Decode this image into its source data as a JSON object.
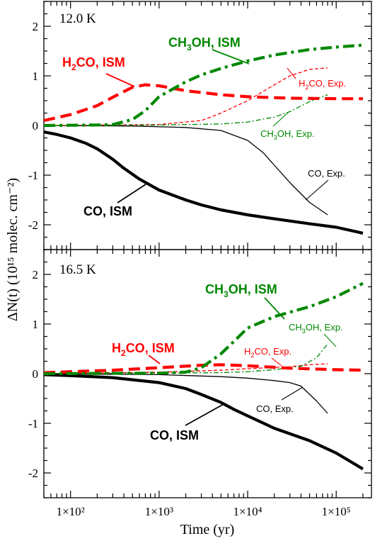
{
  "figure": {
    "xlabel": "Time (yr)",
    "ylabel": "ΔN(t) (10¹⁵ molec. cm⁻²)",
    "x_tick_labels": [
      "1×10²",
      "1×10³",
      "1×10⁴",
      "1×10⁵"
    ]
  },
  "colors": {
    "co": "#000000",
    "h2co": "#ff0000",
    "ch3oh": "#008800"
  },
  "chart_data": [
    {
      "type": "line",
      "panel_label": "12.0 K",
      "x_scale": "log",
      "xlim": [
        50,
        250000
      ],
      "ylim": [
        -2.5,
        2.5
      ],
      "y_ticks": [
        -2,
        -1,
        0,
        1,
        2
      ],
      "y_tick_labels": [
        "-2",
        "-1",
        "0",
        "1",
        "2"
      ],
      "series": [
        {
          "name": "CO, ISM",
          "species": "co",
          "style": "ism",
          "x": [
            50,
            70,
            100,
            150,
            200,
            300,
            400,
            600,
            1000,
            2000,
            3000,
            5000,
            10000,
            20000,
            50000,
            100000,
            200000
          ],
          "y": [
            -0.13,
            -0.18,
            -0.25,
            -0.36,
            -0.47,
            -0.68,
            -0.86,
            -1.08,
            -1.3,
            -1.5,
            -1.6,
            -1.7,
            -1.8,
            -1.88,
            -1.98,
            -2.05,
            -2.17
          ]
        },
        {
          "name": "H₂CO, ISM",
          "species": "h2co",
          "style": "ism",
          "x": [
            50,
            100,
            200,
            300,
            500,
            700,
            1000,
            2000,
            5000,
            10000,
            30000,
            100000,
            200000
          ],
          "y": [
            0.1,
            0.22,
            0.4,
            0.57,
            0.77,
            0.82,
            0.8,
            0.7,
            0.62,
            0.58,
            0.55,
            0.54,
            0.54
          ]
        },
        {
          "name": "CH₃OH, ISM",
          "species": "ch3oh",
          "style": "ism",
          "x": [
            50,
            200,
            300,
            500,
            700,
            1000,
            2000,
            3000,
            5000,
            10000,
            20000,
            50000,
            100000,
            200000
          ],
          "y": [
            0.0,
            0.01,
            0.02,
            0.12,
            0.3,
            0.58,
            0.88,
            1.02,
            1.15,
            1.3,
            1.42,
            1.53,
            1.58,
            1.62
          ]
        },
        {
          "name": "CO, Exp.",
          "species": "co",
          "style": "exp",
          "x": [
            50,
            500,
            2000,
            5000,
            10000,
            15000,
            20000,
            30000,
            50000,
            80000
          ],
          "y": [
            0.0,
            -0.01,
            -0.04,
            -0.1,
            -0.3,
            -0.55,
            -0.8,
            -1.15,
            -1.55,
            -1.8
          ]
        },
        {
          "name": "H₂CO, Exp.",
          "species": "h2co",
          "style": "exp",
          "x": [
            50,
            1000,
            3000,
            5000,
            10000,
            20000,
            30000,
            50000,
            80000
          ],
          "y": [
            0.0,
            0.02,
            0.1,
            0.25,
            0.5,
            0.82,
            1.0,
            1.13,
            1.16
          ]
        },
        {
          "name": "CH₃OH, Exp.",
          "species": "ch3oh",
          "style": "exp",
          "x": [
            50,
            1000,
            5000,
            10000,
            20000,
            30000,
            50000,
            80000
          ],
          "y": [
            0.0,
            0.01,
            0.03,
            0.07,
            0.17,
            0.28,
            0.48,
            0.62
          ]
        }
      ]
    },
    {
      "type": "line",
      "panel_label": "16.5 K",
      "x_scale": "log",
      "xlim": [
        50,
        250000
      ],
      "ylim": [
        -2.5,
        2.5
      ],
      "y_ticks": [
        -2,
        -1,
        0,
        1,
        2
      ],
      "y_tick_labels": [
        "-2",
        "-1",
        "0",
        "1",
        "2"
      ],
      "series": [
        {
          "name": "CO, ISM",
          "species": "co",
          "style": "ism",
          "x": [
            50,
            100,
            300,
            1000,
            2000,
            3000,
            5000,
            7000,
            10000,
            20000,
            50000,
            100000,
            200000
          ],
          "y": [
            -0.02,
            -0.04,
            -0.08,
            -0.18,
            -0.3,
            -0.42,
            -0.58,
            -0.72,
            -0.85,
            -1.1,
            -1.35,
            -1.6,
            -1.92
          ]
        },
        {
          "name": "H₂CO, ISM",
          "species": "h2co",
          "style": "ism",
          "x": [
            50,
            100,
            300,
            1000,
            3000,
            5000,
            10000,
            30000,
            100000,
            200000
          ],
          "y": [
            0.02,
            0.04,
            0.07,
            0.12,
            0.17,
            0.18,
            0.16,
            0.11,
            0.08,
            0.07
          ]
        },
        {
          "name": "CH₃OH, ISM",
          "species": "ch3oh",
          "style": "ism",
          "x": [
            50,
            1000,
            2000,
            3000,
            5000,
            7000,
            10000,
            20000,
            50000,
            100000,
            200000
          ],
          "y": [
            0.0,
            0.01,
            0.03,
            0.12,
            0.4,
            0.65,
            0.92,
            1.15,
            1.35,
            1.55,
            1.82
          ]
        },
        {
          "name": "CO, Exp.",
          "species": "co",
          "style": "exp",
          "x": [
            50,
            1000,
            5000,
            10000,
            20000,
            30000,
            40000,
            60000,
            80000
          ],
          "y": [
            0.0,
            -0.02,
            -0.06,
            -0.09,
            -0.14,
            -0.18,
            -0.25,
            -0.55,
            -0.8
          ]
        },
        {
          "name": "H₂CO, Exp.",
          "species": "h2co",
          "style": "exp",
          "x": [
            50,
            1000,
            5000,
            10000,
            30000,
            50000,
            80000
          ],
          "y": [
            0.0,
            0.03,
            0.07,
            0.1,
            0.14,
            0.18,
            0.2
          ]
        },
        {
          "name": "CH₃OH, Exp.",
          "species": "ch3oh",
          "style": "exp",
          "x": [
            50,
            5000,
            10000,
            20000,
            40000,
            60000,
            80000
          ],
          "y": [
            0.0,
            0.02,
            0.04,
            0.08,
            0.15,
            0.32,
            0.6
          ]
        }
      ]
    }
  ],
  "annotations": [
    [
      {
        "label": "CH",
        "sub": "3",
        "rest": "OH, ISM",
        "species": "ch3oh",
        "style": "ism"
      },
      {
        "label": "H",
        "sub": "2",
        "rest": "CO, ISM",
        "species": "h2co",
        "style": "ism"
      },
      {
        "label": "H",
        "sub": "2",
        "rest": "CO, Exp.",
        "species": "h2co",
        "style": "exp"
      },
      {
        "label": "CH",
        "sub": "3",
        "rest": "OH, Exp.",
        "species": "ch3oh",
        "style": "exp"
      },
      {
        "label": "CO, Exp.",
        "sub": "",
        "rest": "",
        "species": "co",
        "style": "exp"
      },
      {
        "label": "CO, ISM",
        "sub": "",
        "rest": "",
        "species": "co",
        "style": "ism"
      }
    ],
    [
      {
        "label": "CH",
        "sub": "3",
        "rest": "OH, ISM",
        "species": "ch3oh",
        "style": "ism"
      },
      {
        "label": "H",
        "sub": "2",
        "rest": "CO, ISM",
        "species": "h2co",
        "style": "ism"
      },
      {
        "label": "CH",
        "sub": "3",
        "rest": "OH, Exp.",
        "species": "ch3oh",
        "style": "exp"
      },
      {
        "label": "H",
        "sub": "2",
        "rest": "CO, Exp.",
        "species": "h2co",
        "style": "exp"
      },
      {
        "label": "CO, Exp.",
        "sub": "",
        "rest": "",
        "species": "co",
        "style": "exp"
      },
      {
        "label": "CO, ISM",
        "sub": "",
        "rest": "",
        "species": "co",
        "style": "ism"
      }
    ]
  ]
}
